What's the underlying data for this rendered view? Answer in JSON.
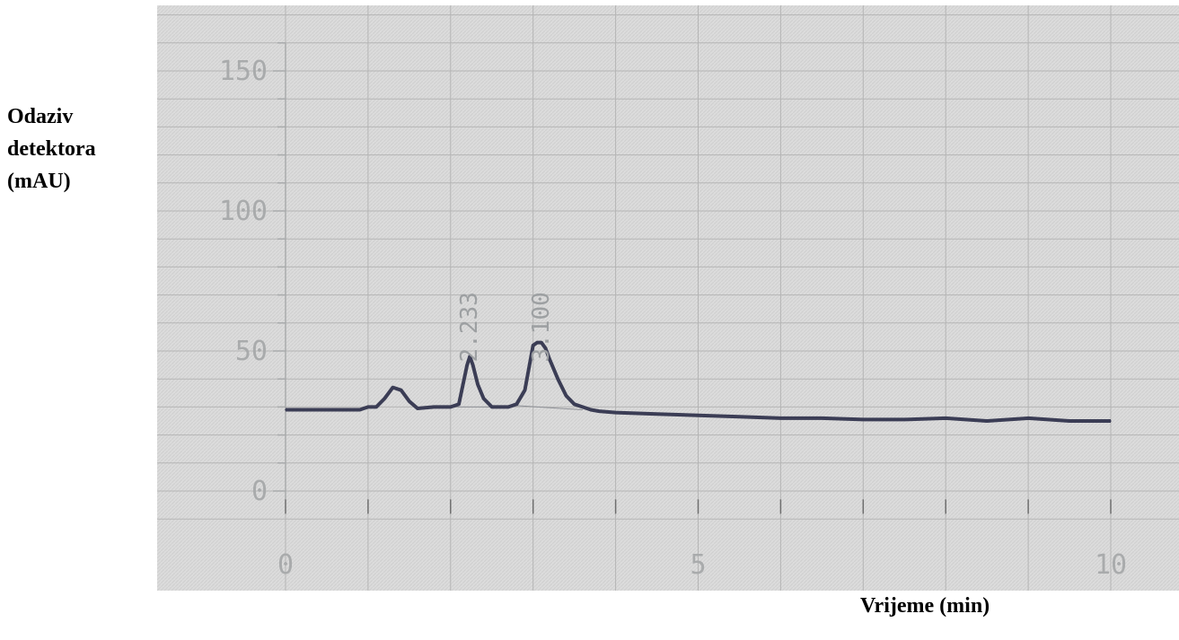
{
  "chart_data": {
    "type": "line",
    "title": "",
    "ylabel": "Odaziv\ndetektora\n(mAU)",
    "xlabel": "Vrijeme (min)",
    "xlim": [
      0,
      10
    ],
    "ylim": [
      0,
      160
    ],
    "x_ticks": [
      "0",
      "5",
      "10"
    ],
    "y_ticks": [
      "0",
      "50",
      "100",
      "150"
    ],
    "grid": true,
    "legend": "none",
    "series": [
      {
        "x": [
          0,
          0.3,
          0.6,
          0.9,
          1.0,
          1.1,
          1.2,
          1.3,
          1.4,
          1.5,
          1.6,
          1.8,
          2.0,
          2.1,
          2.15,
          2.2,
          2.233,
          2.27,
          2.33,
          2.4,
          2.5,
          2.6,
          2.7,
          2.8,
          2.9,
          2.95,
          3.0,
          3.05,
          3.1,
          3.15,
          3.2,
          3.3,
          3.4,
          3.5,
          3.6,
          3.7,
          3.8,
          4.0,
          4.5,
          5.0,
          5.5,
          6.0,
          6.5,
          7.0,
          7.5,
          8.0,
          8.5,
          9.0,
          9.5,
          10.0
        ],
        "y": [
          29,
          29,
          29,
          29,
          30,
          30,
          33,
          37,
          36,
          32,
          29.5,
          30,
          30,
          31,
          38,
          45,
          48,
          45,
          38,
          33,
          30,
          30,
          30,
          31,
          36,
          44,
          52,
          53,
          53,
          51,
          47,
          40,
          34,
          31,
          30,
          29,
          28.5,
          28,
          27.5,
          27,
          26.5,
          26,
          26,
          25.5,
          25.5,
          26,
          25,
          26,
          25,
          25
        ]
      }
    ],
    "annotations": [
      {
        "text": "2.233",
        "x": 2.233
      },
      {
        "text": "3.100",
        "x": 3.1
      }
    ],
    "colors": {
      "trace": "#3b3d55",
      "baseline": "#8e9096",
      "grid": "#b5b5b5",
      "plot_background": "#dcdcdc",
      "text": "#a9abac"
    }
  }
}
